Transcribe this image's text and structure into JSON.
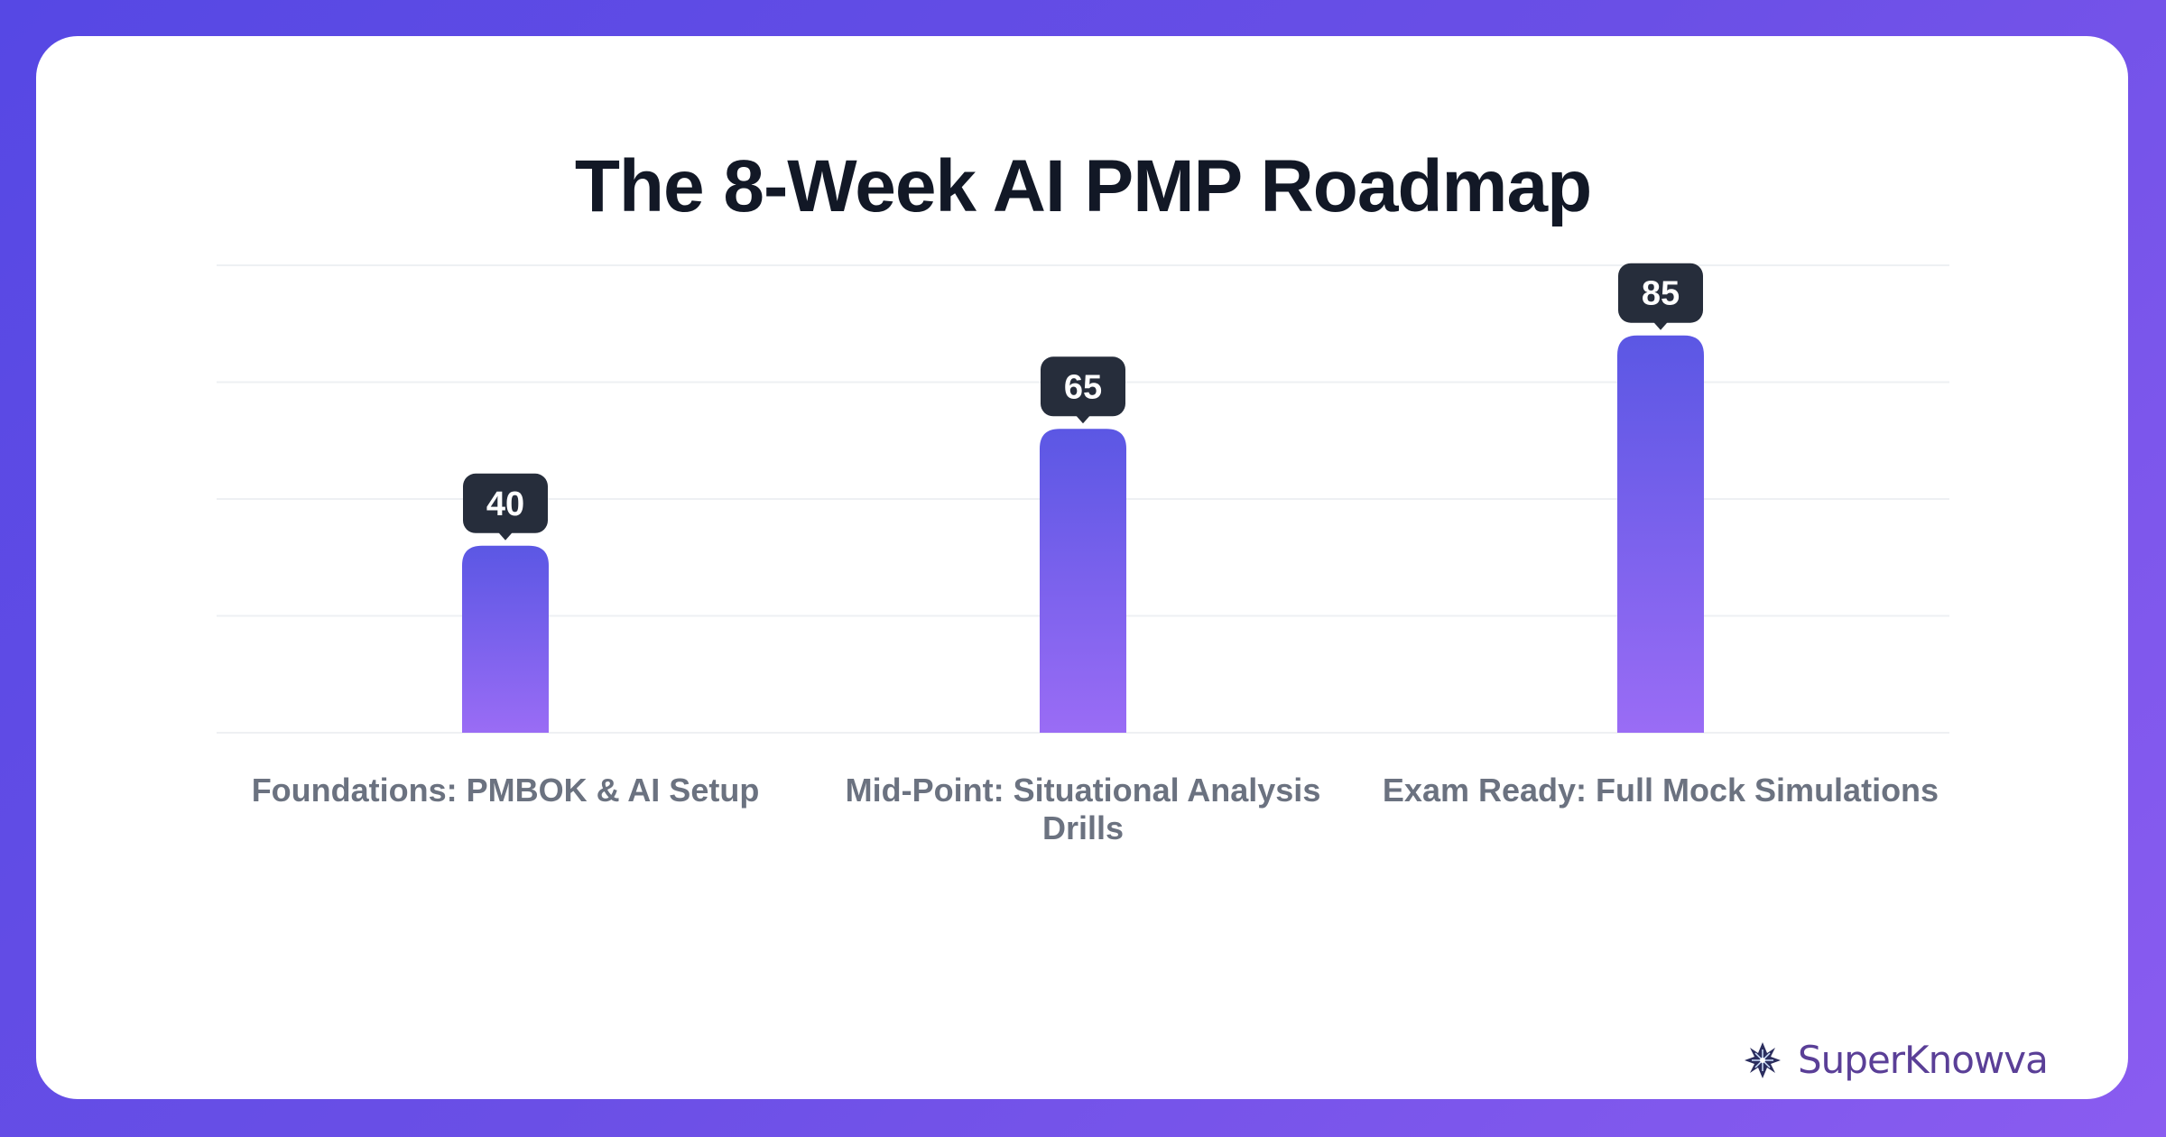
{
  "chart_data": {
    "type": "bar",
    "title": "The 8-Week AI PMP Roadmap",
    "categories": [
      "Foundations: PMBOK & AI Setup",
      "Mid-Point: Situational Analysis Drills",
      "Exam Ready: Full Mock Simulations"
    ],
    "values": [
      40,
      65,
      85
    ],
    "ylim": [
      0,
      100
    ],
    "grid": true,
    "xlabel": "",
    "ylabel": "",
    "colors": {
      "bar_top": "#5b57e4",
      "bar_bottom": "#9a6cf5",
      "label_bg": "#262d3b",
      "background_start": "#5648e4",
      "background_end": "#8a5cf0"
    }
  },
  "brand": {
    "name": "SuperKnowva",
    "icon": "star-burst-logo-icon"
  }
}
